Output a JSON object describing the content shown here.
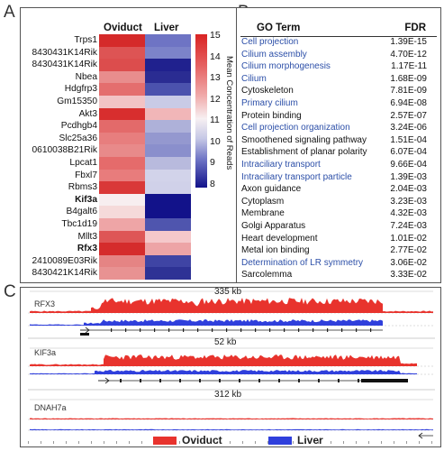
{
  "panel_a": {
    "letter": "A",
    "columns": [
      "Oviduct",
      "Liver"
    ],
    "genes": [
      {
        "name": "Trps1",
        "bold": false,
        "oviduct": "#d52a2a",
        "liver": "#6e74c4"
      },
      {
        "name": "8430431K14Rik",
        "bold": false,
        "oviduct": "#dd5454",
        "liver": "#7c83c9"
      },
      {
        "name": "8430431K14Rik",
        "bold": false,
        "oviduct": "#dc4d4d",
        "liver": "#20218e"
      },
      {
        "name": "Nbea",
        "bold": false,
        "oviduct": "#e88d8d",
        "liver": "#2a2c92"
      },
      {
        "name": "Hdgfrp3",
        "bold": false,
        "oviduct": "#e46e6e",
        "liver": "#4b52ad"
      },
      {
        "name": "Gm15350",
        "bold": false,
        "oviduct": "#f2c3c5",
        "liver": "#c9cbe6"
      },
      {
        "name": "Akt3",
        "bold": false,
        "oviduct": "#d82e2e",
        "liver": "#f1b6b8"
      },
      {
        "name": "Pcdhgb4",
        "bold": false,
        "oviduct": "#e36a6a",
        "liver": "#aeb1d9"
      },
      {
        "name": "Slc25a36",
        "bold": false,
        "oviduct": "#e77e7e",
        "liver": "#9498cf"
      },
      {
        "name": "0610038B21Rik",
        "bold": false,
        "oviduct": "#e88a8a",
        "liver": "#8a8fcc"
      },
      {
        "name": "Lpcat1",
        "bold": false,
        "oviduct": "#e56b6b",
        "liver": "#b8badd"
      },
      {
        "name": "Fbxl7",
        "bold": false,
        "oviduct": "#e87c7c",
        "liver": "#d2d3ea"
      },
      {
        "name": "Rbms3",
        "bold": false,
        "oviduct": "#d93838",
        "liver": "#d0d1e9"
      },
      {
        "name": "Kif3a",
        "bold": true,
        "oviduct": "#f7eef0",
        "liver": "#12128a"
      },
      {
        "name": "B4galt6",
        "bold": false,
        "oviduct": "#f5dada",
        "liver": "#12128a"
      },
      {
        "name": "Tbc1d19",
        "bold": false,
        "oviduct": "#eea5a6",
        "liver": "#4f55ae"
      },
      {
        "name": "Mllt3",
        "bold": false,
        "oviduct": "#de5656",
        "liver": "#f5c8ca"
      },
      {
        "name": "Rfx3",
        "bold": true,
        "oviduct": "#d52c2c",
        "liver": "#eda4a6"
      },
      {
        "name": "2410089E03Rik",
        "bold": false,
        "oviduct": "#e58484",
        "liver": "#3f44a4"
      },
      {
        "name": "8430421K14Rik",
        "bold": false,
        "oviduct": "#e89292",
        "liver": "#2e3295"
      }
    ],
    "colorbar": {
      "ticks": [
        "15",
        "14",
        "13",
        "12",
        "11",
        "10",
        "9",
        "8"
      ],
      "label": "Mean Concentration of Reads"
    }
  },
  "panel_b": {
    "letter": "B",
    "header_term": "GO Term",
    "header_fdr": "FDR",
    "rows": [
      {
        "term": "Cell projection",
        "fdr": "1.39E-15",
        "blue": true
      },
      {
        "term": "Cilium assembly",
        "fdr": "4.70E-12",
        "blue": true
      },
      {
        "term": "Cilium morphogenesis",
        "fdr": "1.17E-11",
        "blue": true
      },
      {
        "term": "Cilium",
        "fdr": "1.68E-09",
        "blue": true
      },
      {
        "term": "Cytoskeleton",
        "fdr": "7.81E-09",
        "blue": false
      },
      {
        "term": "Primary cilium",
        "fdr": "6.94E-08",
        "blue": true
      },
      {
        "term": "Protein binding",
        "fdr": "2.57E-07",
        "blue": false
      },
      {
        "term": "Cell projection organization",
        "fdr": "3.24E-06",
        "blue": true
      },
      {
        "term": "Smoothened signaling pathway",
        "fdr": "1.51E-04",
        "blue": false
      },
      {
        "term": "Establishment of planar polarity",
        "fdr": "6.07E-04",
        "blue": false
      },
      {
        "term": "Intraciliary transport",
        "fdr": "9.66E-04",
        "blue": true
      },
      {
        "term": "Intraciliary transport particle",
        "fdr": "1.39E-03",
        "blue": true
      },
      {
        "term": "Axon guidance",
        "fdr": "2.04E-03",
        "blue": false
      },
      {
        "term": "Cytoplasm",
        "fdr": "3.23E-03",
        "blue": false
      },
      {
        "term": "Membrane",
        "fdr": "4.32E-03",
        "blue": false
      },
      {
        "term": "Golgi Apparatus",
        "fdr": "7.24E-03",
        "blue": false
      },
      {
        "term": "Heart development",
        "fdr": "1.01E-02",
        "blue": false
      },
      {
        "term": "Metal ion binding",
        "fdr": "2.77E-02",
        "blue": false
      },
      {
        "term": "Determination of LR symmetry",
        "fdr": "3.06E-02",
        "blue": true
      },
      {
        "term": "Sarcolemma",
        "fdr": "3.33E-02",
        "blue": false
      }
    ]
  },
  "panel_c": {
    "letter": "C",
    "tracks": [
      {
        "gene": "RFX3",
        "scale": "335 kb"
      },
      {
        "gene": "KIF3a",
        "scale": "52 kb"
      },
      {
        "gene": "DNAH7a",
        "scale": "312 kb"
      }
    ],
    "legend": [
      {
        "label": "Oviduct",
        "color": "#e8332d"
      },
      {
        "label": "Liver",
        "color": "#2f3fdc"
      }
    ]
  }
}
